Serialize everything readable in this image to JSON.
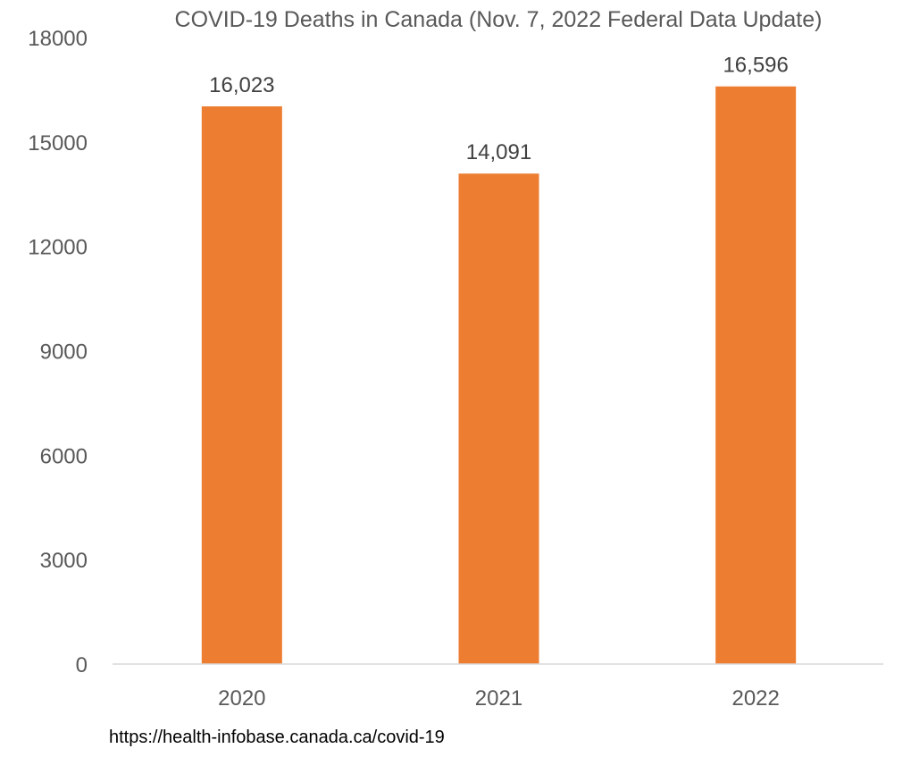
{
  "chart_data": {
    "type": "bar",
    "title": "COVID-19 Deaths in Canada (Nov. 7, 2022 Federal Data Update)",
    "xlabel": "",
    "ylabel": "",
    "categories": [
      "2020",
      "2021",
      "2022"
    ],
    "values": [
      16023,
      14091,
      16596
    ],
    "data_labels": [
      "16,023",
      "14,091",
      "16,596"
    ],
    "ylim": [
      0,
      18000
    ],
    "yticks": [
      0,
      3000,
      6000,
      9000,
      12000,
      15000,
      18000
    ],
    "ytick_labels": [
      "0",
      "3000",
      "6000",
      "9000",
      "12000",
      "15000",
      "18000"
    ],
    "grid": false,
    "legend": "none",
    "bar_color": "#ED7D31",
    "axis_color": "#D9D9D9"
  },
  "source_text": "https://health-infobase.canada.ca/covid-19"
}
